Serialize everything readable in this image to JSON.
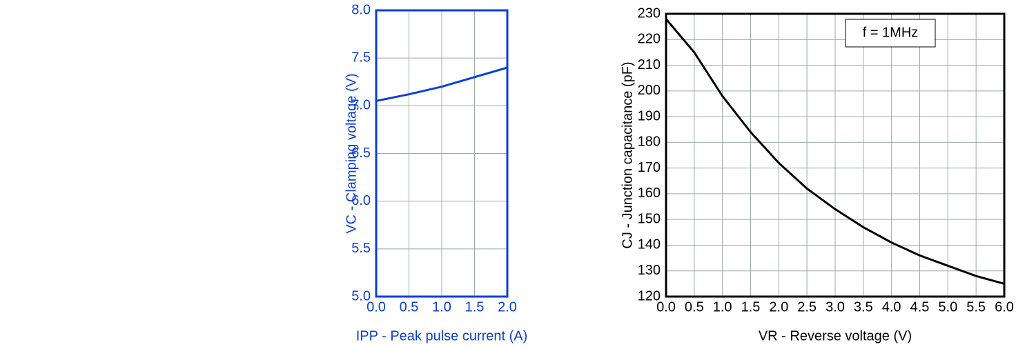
{
  "chart_data": [
    {
      "type": "line",
      "x_label": "IPP - Peak pulse current (A)",
      "y_label": "VC - Clamping voltage (V)",
      "x": [
        0,
        0.5,
        1.0,
        1.5,
        2.0
      ],
      "series": [
        {
          "name": "Clamping voltage",
          "color": "#0a3fd6",
          "values": [
            7.05,
            7.12,
            7.2,
            7.3,
            7.4
          ]
        }
      ],
      "xlim": [
        0,
        2
      ],
      "xticks": [
        {
          "value": 0,
          "label": "0.0"
        },
        {
          "value": 0.5,
          "label": "0.5"
        },
        {
          "value": 1,
          "label": "1.0"
        },
        {
          "value": 1.5,
          "label": "1.5"
        },
        {
          "value": 2,
          "label": "2.0"
        }
      ],
      "ylim": [
        5,
        8
      ],
      "yticks": [
        {
          "value": 5,
          "label": "5.0"
        },
        {
          "value": 5.5,
          "label": "5.5"
        },
        {
          "value": 6,
          "label": "6.0"
        },
        {
          "value": 6.5,
          "label": "6.5"
        },
        {
          "value": 7,
          "label": "7.0"
        },
        {
          "value": 7.5,
          "label": "7.5"
        },
        {
          "value": 8,
          "label": "8.0"
        }
      ],
      "grid": true,
      "axis_color": "#0a3fd6"
    },
    {
      "type": "line",
      "annotation": "f = 1MHz",
      "x_label": "VR - Reverse voltage (V)",
      "y_label": "CJ - Junction capacitance (pF)",
      "x": [
        0,
        0.5,
        1.0,
        1.5,
        2.0,
        2.5,
        3.0,
        3.5,
        4.0,
        4.5,
        5.0,
        5.5,
        6.0
      ],
      "series": [
        {
          "name": "Junction capacitance",
          "color": "#000000",
          "values": [
            228,
            215,
            198,
            184,
            172,
            162,
            154,
            147,
            141,
            136,
            132,
            128,
            125
          ]
        }
      ],
      "xlim": [
        0,
        6
      ],
      "xticks": [
        {
          "value": 0,
          "label": "0.0"
        },
        {
          "value": 0.5,
          "label": "0.5"
        },
        {
          "value": 1,
          "label": "1.0"
        },
        {
          "value": 1.5,
          "label": "1.5"
        },
        {
          "value": 2,
          "label": "2.0"
        },
        {
          "value": 2.5,
          "label": "2.5"
        },
        {
          "value": 3,
          "label": "3.0"
        },
        {
          "value": 3.5,
          "label": "3.5"
        },
        {
          "value": 4,
          "label": "4.0"
        },
        {
          "value": 4.5,
          "label": "4.5"
        },
        {
          "value": 5,
          "label": "5.0"
        },
        {
          "value": 5.5,
          "label": "5.5"
        },
        {
          "value": 6,
          "label": "6.0"
        }
      ],
      "ylim": [
        120,
        230
      ],
      "yticks": [
        120,
        130,
        140,
        150,
        160,
        170,
        180,
        190,
        200,
        210,
        220,
        230
      ],
      "grid": true,
      "axis_color": "#000000"
    }
  ]
}
